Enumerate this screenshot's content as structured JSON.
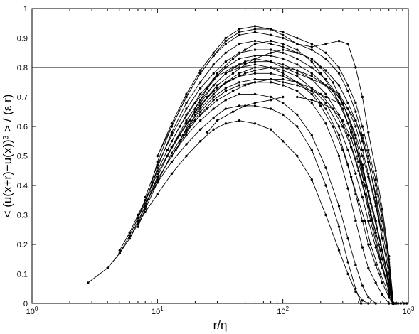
{
  "chart_data": {
    "type": "line",
    "xlabel": "r/η",
    "ylabel": "< (u(x+r)−u(x))³ > / (ε r)",
    "xscale": "log",
    "xlim": [
      1,
      1000
    ],
    "ylim": [
      0,
      1
    ],
    "grid": false,
    "legend": "none",
    "x_tick_labels": [
      {
        "value": 1,
        "base": "10",
        "exp": "0"
      },
      {
        "value": 10,
        "base": "10",
        "exp": "1"
      },
      {
        "value": 100,
        "base": "10",
        "exp": "2"
      },
      {
        "value": 1000,
        "base": "10",
        "exp": "3"
      }
    ],
    "y_tick_labels": [
      "0",
      "0.1",
      "0.2",
      "0.3",
      "0.4",
      "0.5",
      "0.6",
      "0.7",
      "0.8",
      "0.9",
      "1"
    ],
    "reference_line": {
      "y": 0.8
    },
    "series": [
      {
        "x": [
          2.8,
          4,
          5,
          6,
          7,
          8,
          10,
          13,
          17,
          22,
          28,
          35,
          45,
          60,
          80,
          100,
          130,
          170,
          220,
          280,
          330,
          380,
          430,
          480
        ],
        "y": [
          0.07,
          0.12,
          0.17,
          0.22,
          0.27,
          0.31,
          0.37,
          0.44,
          0.5,
          0.55,
          0.59,
          0.61,
          0.62,
          0.61,
          0.59,
          0.55,
          0.5,
          0.42,
          0.3,
          0.18,
          0.1,
          0.04,
          0.01,
          0
        ]
      },
      {
        "x": [
          4,
          5,
          6,
          7,
          8,
          10,
          13,
          17,
          22,
          28,
          35,
          45,
          60,
          80,
          100,
          130,
          170,
          220,
          280,
          330,
          380,
          420
        ],
        "y": [
          0.12,
          0.17,
          0.23,
          0.29,
          0.34,
          0.41,
          0.48,
          0.54,
          0.59,
          0.63,
          0.66,
          0.67,
          0.67,
          0.66,
          0.64,
          0.6,
          0.52,
          0.4,
          0.26,
          0.14,
          0.05,
          0
        ]
      },
      {
        "x": [
          5,
          6,
          7,
          8,
          10,
          13,
          17,
          22,
          28,
          35,
          45,
          60,
          80,
          100,
          130,
          170,
          220,
          280,
          330,
          380,
          430,
          480,
          550
        ],
        "y": [
          0.18,
          0.24,
          0.3,
          0.35,
          0.42,
          0.5,
          0.57,
          0.62,
          0.66,
          0.69,
          0.71,
          0.71,
          0.7,
          0.68,
          0.64,
          0.57,
          0.46,
          0.33,
          0.22,
          0.13,
          0.06,
          0.02,
          0
        ]
      },
      {
        "x": [
          6,
          7,
          8,
          10,
          13,
          17,
          22,
          28,
          35,
          45,
          60,
          80,
          100,
          130,
          170,
          220,
          280,
          330,
          380,
          430,
          480,
          550,
          620,
          700
        ],
        "y": [
          0.22,
          0.28,
          0.33,
          0.42,
          0.5,
          0.58,
          0.64,
          0.69,
          0.72,
          0.74,
          0.75,
          0.75,
          0.74,
          0.72,
          0.68,
          0.61,
          0.5,
          0.39,
          0.28,
          0.19,
          0.12,
          0.07,
          0.03,
          0
        ]
      },
      {
        "x": [
          6,
          7,
          8,
          10,
          13,
          17,
          22,
          28,
          35,
          45,
          60,
          80,
          100,
          130,
          170,
          220,
          280,
          330,
          380,
          430,
          480,
          550,
          620,
          700,
          750
        ],
        "y": [
          0.23,
          0.29,
          0.35,
          0.44,
          0.53,
          0.61,
          0.67,
          0.72,
          0.75,
          0.77,
          0.78,
          0.78,
          0.77,
          0.75,
          0.72,
          0.66,
          0.57,
          0.47,
          0.37,
          0.28,
          0.2,
          0.13,
          0.07,
          0.02,
          0
        ]
      },
      {
        "x": [
          7,
          8,
          10,
          13,
          17,
          22,
          28,
          35,
          45,
          60,
          80,
          100,
          130,
          170,
          220,
          280,
          330,
          380,
          430,
          480,
          550,
          620,
          700,
          750
        ],
        "y": [
          0.26,
          0.32,
          0.41,
          0.51,
          0.59,
          0.66,
          0.71,
          0.75,
          0.78,
          0.8,
          0.8,
          0.79,
          0.77,
          0.73,
          0.68,
          0.6,
          0.52,
          0.44,
          0.36,
          0.28,
          0.19,
          0.12,
          0.05,
          0
        ]
      },
      {
        "x": [
          7,
          8,
          10,
          13,
          17,
          22,
          28,
          35,
          45,
          60,
          80,
          100,
          130,
          170,
          220,
          280,
          330,
          380,
          430,
          480,
          550,
          620,
          700,
          750
        ],
        "y": [
          0.27,
          0.33,
          0.43,
          0.53,
          0.62,
          0.69,
          0.74,
          0.78,
          0.81,
          0.82,
          0.82,
          0.81,
          0.79,
          0.76,
          0.71,
          0.64,
          0.57,
          0.49,
          0.41,
          0.33,
          0.24,
          0.15,
          0.07,
          0
        ]
      },
      {
        "x": [
          8,
          10,
          13,
          17,
          22,
          28,
          35,
          45,
          60,
          80,
          100,
          130,
          170,
          220,
          280,
          330,
          380,
          430,
          480,
          550,
          620,
          700,
          760
        ],
        "y": [
          0.35,
          0.45,
          0.55,
          0.64,
          0.71,
          0.76,
          0.8,
          0.83,
          0.84,
          0.84,
          0.83,
          0.81,
          0.78,
          0.74,
          0.68,
          0.61,
          0.54,
          0.46,
          0.38,
          0.28,
          0.18,
          0.08,
          0
        ]
      },
      {
        "x": [
          8,
          10,
          13,
          17,
          22,
          28,
          35,
          45,
          60,
          80,
          100,
          130,
          170,
          220,
          280,
          330,
          380,
          430,
          480,
          550,
          620,
          700,
          760
        ],
        "y": [
          0.36,
          0.47,
          0.57,
          0.66,
          0.73,
          0.78,
          0.82,
          0.85,
          0.86,
          0.86,
          0.85,
          0.83,
          0.8,
          0.76,
          0.7,
          0.64,
          0.57,
          0.5,
          0.43,
          0.33,
          0.22,
          0.1,
          0
        ]
      },
      {
        "x": [
          9,
          10,
          13,
          17,
          22,
          28,
          35,
          45,
          60,
          80,
          100,
          130,
          170,
          220,
          280,
          330,
          380,
          430,
          480,
          550,
          620,
          700,
          760
        ],
        "y": [
          0.4,
          0.46,
          0.58,
          0.68,
          0.75,
          0.81,
          0.85,
          0.88,
          0.89,
          0.88,
          0.87,
          0.85,
          0.83,
          0.79,
          0.74,
          0.68,
          0.62,
          0.55,
          0.48,
          0.37,
          0.25,
          0.12,
          0
        ]
      },
      {
        "x": [
          9,
          10,
          13,
          17,
          22,
          28,
          35,
          45,
          60,
          80,
          100,
          130,
          170,
          220,
          280,
          330,
          380,
          430,
          480,
          550,
          620,
          700,
          760
        ],
        "y": [
          0.41,
          0.48,
          0.6,
          0.7,
          0.78,
          0.84,
          0.88,
          0.91,
          0.92,
          0.91,
          0.9,
          0.88,
          0.86,
          0.83,
          0.78,
          0.72,
          0.65,
          0.57,
          0.5,
          0.4,
          0.28,
          0.14,
          0
        ]
      },
      {
        "x": [
          10,
          13,
          17,
          22,
          28,
          35,
          45,
          60,
          80,
          100,
          130,
          170,
          220,
          280,
          330,
          380,
          430,
          480,
          550,
          620,
          700,
          760
        ],
        "y": [
          0.5,
          0.6,
          0.7,
          0.78,
          0.84,
          0.89,
          0.92,
          0.93,
          0.93,
          0.92,
          0.9,
          0.88,
          0.85,
          0.8,
          0.74,
          0.68,
          0.6,
          0.52,
          0.42,
          0.3,
          0.15,
          0
        ]
      },
      {
        "x": [
          10,
          13,
          17,
          22,
          28,
          35,
          45,
          60,
          80,
          100,
          130,
          170,
          220,
          280,
          330,
          380,
          430,
          480,
          550,
          620,
          700,
          760
        ],
        "y": [
          0.5,
          0.61,
          0.71,
          0.79,
          0.85,
          0.9,
          0.93,
          0.94,
          0.93,
          0.91,
          0.88,
          0.87,
          0.88,
          0.89,
          0.88,
          0.8,
          0.7,
          0.58,
          0.45,
          0.32,
          0.16,
          0
        ]
      },
      {
        "x": [
          12,
          15,
          20,
          25,
          30,
          40,
          50,
          60,
          80,
          100,
          130,
          170,
          220,
          280,
          330,
          380,
          430,
          480,
          550,
          620,
          700,
          760
        ],
        "y": [
          0.52,
          0.6,
          0.68,
          0.73,
          0.77,
          0.8,
          0.82,
          0.83,
          0.82,
          0.8,
          0.78,
          0.76,
          0.74,
          0.71,
          0.66,
          0.6,
          0.52,
          0.44,
          0.34,
          0.22,
          0.1,
          0
        ]
      },
      {
        "x": [
          12,
          15,
          20,
          25,
          30,
          40,
          50,
          60,
          80,
          100,
          130,
          170,
          220,
          280,
          330,
          380,
          430,
          480,
          550,
          620,
          700,
          760
        ],
        "y": [
          0.5,
          0.57,
          0.65,
          0.7,
          0.73,
          0.76,
          0.78,
          0.79,
          0.8,
          0.8,
          0.79,
          0.77,
          0.74,
          0.7,
          0.64,
          0.56,
          0.47,
          0.38,
          0.28,
          0.18,
          0.08,
          0
        ]
      },
      {
        "x": [
          14,
          18,
          22,
          28,
          35,
          45,
          60,
          80,
          100,
          130,
          170,
          220,
          280,
          330,
          380,
          430,
          480,
          550,
          620,
          700,
          760
        ],
        "y": [
          0.52,
          0.6,
          0.65,
          0.7,
          0.73,
          0.75,
          0.76,
          0.76,
          0.75,
          0.74,
          0.72,
          0.7,
          0.68,
          0.66,
          0.62,
          0.56,
          0.48,
          0.36,
          0.22,
          0.1,
          0
        ]
      },
      {
        "x": [
          15,
          20,
          25,
          30,
          40,
          50,
          60,
          80,
          100,
          130,
          170,
          200,
          250,
          300,
          350,
          400,
          450,
          500,
          600,
          700,
          750
        ],
        "y": [
          0.55,
          0.64,
          0.7,
          0.74,
          0.78,
          0.81,
          0.83,
          0.85,
          0.86,
          0.85,
          0.83,
          0.8,
          0.75,
          0.68,
          0.6,
          0.5,
          0.4,
          0.3,
          0.15,
          0.05,
          0
        ]
      },
      {
        "x": [
          16,
          20,
          25,
          30,
          40,
          50,
          60,
          80,
          100,
          130,
          170,
          200,
          250,
          300,
          350,
          400,
          450,
          500,
          600,
          700,
          760
        ],
        "y": [
          0.57,
          0.66,
          0.73,
          0.78,
          0.83,
          0.86,
          0.88,
          0.89,
          0.88,
          0.86,
          0.82,
          0.78,
          0.72,
          0.66,
          0.58,
          0.5,
          0.42,
          0.34,
          0.2,
          0.07,
          0
        ]
      },
      {
        "x": [
          18,
          22,
          28,
          35,
          45,
          60,
          80,
          100,
          130,
          170,
          200,
          250,
          300,
          350,
          400,
          450,
          500,
          600,
          700,
          750
        ],
        "y": [
          0.62,
          0.68,
          0.74,
          0.78,
          0.8,
          0.81,
          0.8,
          0.78,
          0.75,
          0.71,
          0.67,
          0.6,
          0.52,
          0.43,
          0.35,
          0.28,
          0.2,
          0.1,
          0.03,
          0
        ]
      },
      {
        "x": [
          20,
          25,
          30,
          40,
          50,
          60,
          80,
          100,
          130,
          170,
          200,
          250,
          300,
          350,
          400,
          450,
          500,
          600,
          700,
          760
        ],
        "y": [
          0.62,
          0.66,
          0.69,
          0.72,
          0.74,
          0.75,
          0.76,
          0.76,
          0.75,
          0.73,
          0.71,
          0.66,
          0.6,
          0.53,
          0.45,
          0.37,
          0.28,
          0.14,
          0.04,
          0
        ]
      },
      {
        "x": [
          25,
          30,
          40,
          50,
          60,
          80,
          100,
          130,
          170,
          200,
          250,
          300,
          350,
          400,
          450,
          500,
          600,
          700,
          760
        ],
        "y": [
          0.58,
          0.62,
          0.65,
          0.67,
          0.68,
          0.69,
          0.7,
          0.7,
          0.69,
          0.68,
          0.66,
          0.62,
          0.56,
          0.48,
          0.4,
          0.31,
          0.18,
          0.06,
          0
        ]
      },
      {
        "x": [
          760,
          780,
          800,
          830,
          870,
          920,
          970
        ],
        "y": [
          0,
          0,
          0,
          0,
          0,
          0,
          0
        ]
      }
    ]
  }
}
